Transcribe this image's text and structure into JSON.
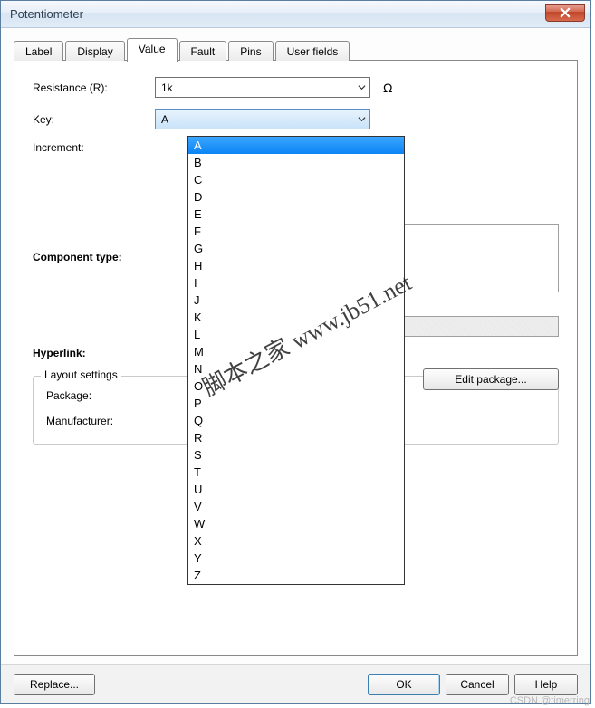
{
  "window": {
    "title": "Potentiometer"
  },
  "tabs": {
    "items": [
      "Label",
      "Display",
      "Value",
      "Fault",
      "Pins",
      "User fields"
    ],
    "active_index": 2
  },
  "fields": {
    "resistance": {
      "label": "Resistance (R):",
      "value": "1k",
      "unit": "Ω"
    },
    "key": {
      "label": "Key:",
      "value": "A",
      "options": [
        "A",
        "B",
        "C",
        "D",
        "E",
        "F",
        "G",
        "H",
        "I",
        "J",
        "K",
        "L",
        "M",
        "N",
        "O",
        "P",
        "Q",
        "R",
        "S",
        "T",
        "U",
        "V",
        "W",
        "X",
        "Y",
        "Z"
      ],
      "selected_index": 0
    },
    "increment": {
      "label": "Increment:",
      "value": "",
      "unit": "%"
    },
    "component_type": {
      "label": "Component type:"
    },
    "hyperlink": {
      "label": "Hyperlink:"
    }
  },
  "layout_settings": {
    "legend": "Layout settings",
    "package": {
      "label": "Package:"
    },
    "manufacturer": {
      "label": "Manufacturer:"
    },
    "edit_package_btn": "Edit package..."
  },
  "buttons": {
    "replace": "Replace...",
    "ok": "OK",
    "cancel": "Cancel",
    "help": "Help"
  },
  "colors": {
    "titlebar_grad_top": "#f6f9fd",
    "titlebar_grad_bottom": "#e0ecf7",
    "close_bg": "#c1452a",
    "tab_border": "#8a8a8a",
    "highlight": "#1e90ff",
    "btn_default_border": "#3c7fb1"
  },
  "watermark": "脚本之家 www.jb51.net",
  "credit": "CSDN @timerring"
}
